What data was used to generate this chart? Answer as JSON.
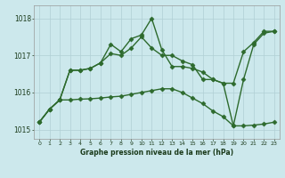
{
  "xlabel": "Graphe pression niveau de la mer (hPa)",
  "hours": [
    0,
    1,
    2,
    3,
    4,
    5,
    6,
    7,
    8,
    9,
    10,
    11,
    12,
    13,
    14,
    15,
    16,
    17,
    18,
    19,
    20,
    21,
    22,
    23
  ],
  "s1": [
    1015.2,
    1015.55,
    1015.8,
    1016.6,
    1016.6,
    1016.65,
    1016.8,
    1017.3,
    1017.1,
    1017.45,
    1017.55,
    1018.0,
    1017.15,
    1016.7,
    1016.7,
    1016.65,
    1016.55,
    1016.35,
    1016.25,
    1015.1,
    1016.35,
    1017.3,
    1017.6,
    1017.65
  ],
  "s2": [
    1015.2,
    1015.55,
    1015.8,
    1016.6,
    1016.6,
    1016.65,
    1016.8,
    1017.05,
    1017.0,
    1017.2,
    1017.5,
    1017.2,
    1017.0,
    1017.0,
    1016.85,
    1016.75,
    1016.35,
    1016.35,
    1016.25,
    1016.25,
    1017.1,
    1017.35,
    1017.65,
    1017.65
  ],
  "s3": [
    1015.2,
    1015.55,
    1015.8,
    1015.8,
    1015.82,
    1015.83,
    1015.85,
    1015.88,
    1015.9,
    1015.95,
    1016.0,
    1016.05,
    1016.1,
    1016.1,
    1016.0,
    1015.85,
    1015.7,
    1015.5,
    1015.35,
    1015.1,
    1015.1,
    1015.12,
    1015.15,
    1015.2
  ],
  "ylim": [
    1014.75,
    1018.35
  ],
  "yticks": [
    1015,
    1016,
    1017,
    1018
  ],
  "bg_color": "#cce8ec",
  "line_color": "#2d6a2d",
  "grid_color": "#b0cfd4",
  "markersize": 2.5,
  "linewidth": 1.0
}
